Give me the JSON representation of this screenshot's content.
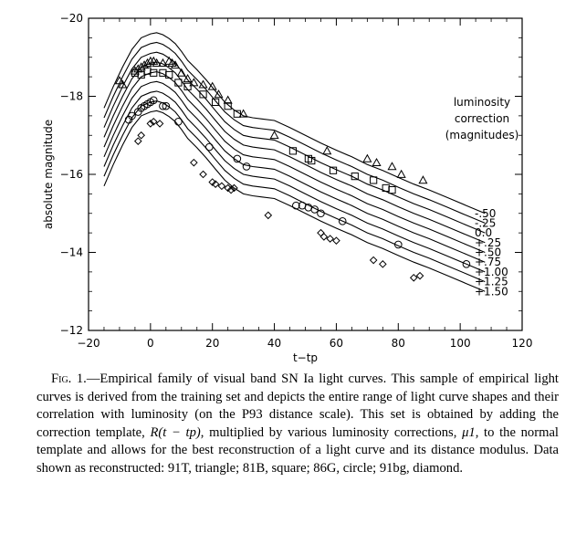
{
  "chart_data": {
    "type": "line",
    "xlabel": "t−tp",
    "ylabel": "absolute magnitude",
    "xlim": [
      -20,
      120
    ],
    "ylim": [
      -20,
      -12
    ],
    "y_inverted": true,
    "x_ticks": [
      -20,
      0,
      20,
      40,
      60,
      80,
      100,
      120
    ],
    "y_ticks": [
      -20,
      -18,
      -16,
      -14,
      -12
    ],
    "x_tick_labels": [
      "−20",
      "0",
      "20",
      "40",
      "60",
      "80",
      "100",
      "120"
    ],
    "y_tick_labels": [
      "−20",
      "−18",
      "−16",
      "−14",
      "−12"
    ],
    "x_minor_step": 5,
    "y_minor_step": 0.5,
    "correction_title": [
      "luminosity",
      "correction",
      "(magnitudes)"
    ],
    "template": {
      "x": [
        -15,
        -12,
        -9,
        -6,
        -3,
        0,
        2,
        4,
        6,
        8,
        10,
        12,
        15,
        18,
        21,
        24,
        27,
        30,
        33,
        36,
        40,
        45,
        50,
        55,
        60,
        65,
        70,
        75,
        80,
        85,
        90,
        96,
        102,
        108
      ],
      "mag": [
        -17.2,
        -17.75,
        -18.25,
        -18.7,
        -19.0,
        -19.1,
        -19.13,
        -19.08,
        -18.98,
        -18.85,
        -18.65,
        -18.42,
        -18.18,
        -17.92,
        -17.63,
        -17.35,
        -17.15,
        -17.0,
        -16.95,
        -16.92,
        -16.88,
        -16.7,
        -16.5,
        -16.3,
        -16.12,
        -15.95,
        -15.75,
        -15.6,
        -15.42,
        -15.25,
        -15.1,
        -14.9,
        -14.7,
        -14.5
      ]
    },
    "series": [
      {
        "name": "-.50",
        "offset": -0.5
      },
      {
        "name": "-.25",
        "offset": -0.25
      },
      {
        "name": "0.0",
        "offset": 0.0
      },
      {
        "name": "+.25",
        "offset": 0.25
      },
      {
        "name": "+.50",
        "offset": 0.5
      },
      {
        "name": "+.75",
        "offset": 0.75
      },
      {
        "name": "+1.00",
        "offset": 1.0
      },
      {
        "name": "+1.25",
        "offset": 1.25
      },
      {
        "name": "+1.50",
        "offset": 1.5
      }
    ],
    "points": {
      "triangle": [
        [
          -10,
          -18.4
        ],
        [
          -9,
          -18.3
        ],
        [
          -5,
          -18.65
        ],
        [
          -4,
          -18.7
        ],
        [
          -3,
          -18.75
        ],
        [
          -2,
          -18.8
        ],
        [
          -1,
          -18.85
        ],
        [
          0,
          -18.9
        ],
        [
          1,
          -18.9
        ],
        [
          2,
          -18.85
        ],
        [
          4,
          -18.85
        ],
        [
          6,
          -18.9
        ],
        [
          7,
          -18.85
        ],
        [
          8,
          -18.8
        ],
        [
          10,
          -18.6
        ],
        [
          12,
          -18.45
        ],
        [
          14,
          -18.35
        ],
        [
          17,
          -18.3
        ],
        [
          20,
          -18.25
        ],
        [
          22,
          -18.05
        ],
        [
          25,
          -17.9
        ],
        [
          30,
          -17.55
        ],
        [
          40,
          -17.0
        ],
        [
          57,
          -16.6
        ],
        [
          70,
          -16.4
        ],
        [
          73,
          -16.3
        ],
        [
          78,
          -16.2
        ],
        [
          81,
          -16.0
        ],
        [
          88,
          -15.85
        ]
      ],
      "square": [
        [
          -5,
          -18.6
        ],
        [
          -3,
          -18.55
        ],
        [
          -1,
          -18.65
        ],
        [
          1,
          -18.6
        ],
        [
          4,
          -18.6
        ],
        [
          6,
          -18.55
        ],
        [
          9,
          -18.35
        ],
        [
          12,
          -18.25
        ],
        [
          17,
          -18.05
        ],
        [
          21,
          -17.85
        ],
        [
          25,
          -17.75
        ],
        [
          28,
          -17.55
        ],
        [
          46,
          -16.6
        ],
        [
          51,
          -16.4
        ],
        [
          52,
          -16.35
        ],
        [
          59,
          -16.1
        ],
        [
          66,
          -15.95
        ],
        [
          72,
          -15.85
        ],
        [
          76,
          -15.65
        ],
        [
          78,
          -15.6
        ]
      ],
      "circle": [
        [
          -7,
          -17.4
        ],
        [
          -6,
          -17.5
        ],
        [
          -4,
          -17.6
        ],
        [
          -3,
          -17.7
        ],
        [
          -2,
          -17.75
        ],
        [
          -1,
          -17.8
        ],
        [
          0,
          -17.85
        ],
        [
          1,
          -17.9
        ],
        [
          4,
          -17.75
        ],
        [
          5,
          -17.75
        ],
        [
          9,
          -17.35
        ],
        [
          19,
          -16.7
        ],
        [
          28,
          -16.4
        ],
        [
          31,
          -16.2
        ],
        [
          47,
          -15.2
        ],
        [
          49,
          -15.2
        ],
        [
          51,
          -15.15
        ],
        [
          53,
          -15.1
        ],
        [
          55,
          -15.0
        ],
        [
          62,
          -14.8
        ],
        [
          80,
          -14.2
        ],
        [
          102,
          -13.7
        ]
      ],
      "diamond": [
        [
          -4,
          -16.85
        ],
        [
          -3,
          -17.0
        ],
        [
          0,
          -17.3
        ],
        [
          1,
          -17.35
        ],
        [
          3,
          -17.3
        ],
        [
          14,
          -16.3
        ],
        [
          17,
          -16.0
        ],
        [
          20,
          -15.8
        ],
        [
          21,
          -15.75
        ],
        [
          23,
          -15.7
        ],
        [
          25,
          -15.65
        ],
        [
          26,
          -15.6
        ],
        [
          27,
          -15.65
        ],
        [
          38,
          -14.95
        ],
        [
          55,
          -14.5
        ],
        [
          56,
          -14.4
        ],
        [
          58,
          -14.35
        ],
        [
          60,
          -14.3
        ],
        [
          72,
          -13.8
        ],
        [
          75,
          -13.7
        ],
        [
          85,
          -13.35
        ],
        [
          87,
          -13.4
        ]
      ]
    }
  },
  "caption": {
    "fig_label": "Fig. 1.",
    "text_1": "—Empirical family of visual band SN Ia light curves. This sample of empirical light curves is derived from the training set and depicts the entire range of light curve shapes and their correlation with luminosity (on the P93 distance scale). This set is obtained by adding the correction template, ",
    "math_1": "R(t − tp)",
    "text_2": ", multiplied by various luminosity corrections, ",
    "math_2": "μ1",
    "text_3": ", to the normal template and allows for the best reconstruction of a light curve and its distance modulus. Data shown as reconstructed: 91T, triangle; 81B, square; 86G, circle; 91bg, diamond."
  }
}
